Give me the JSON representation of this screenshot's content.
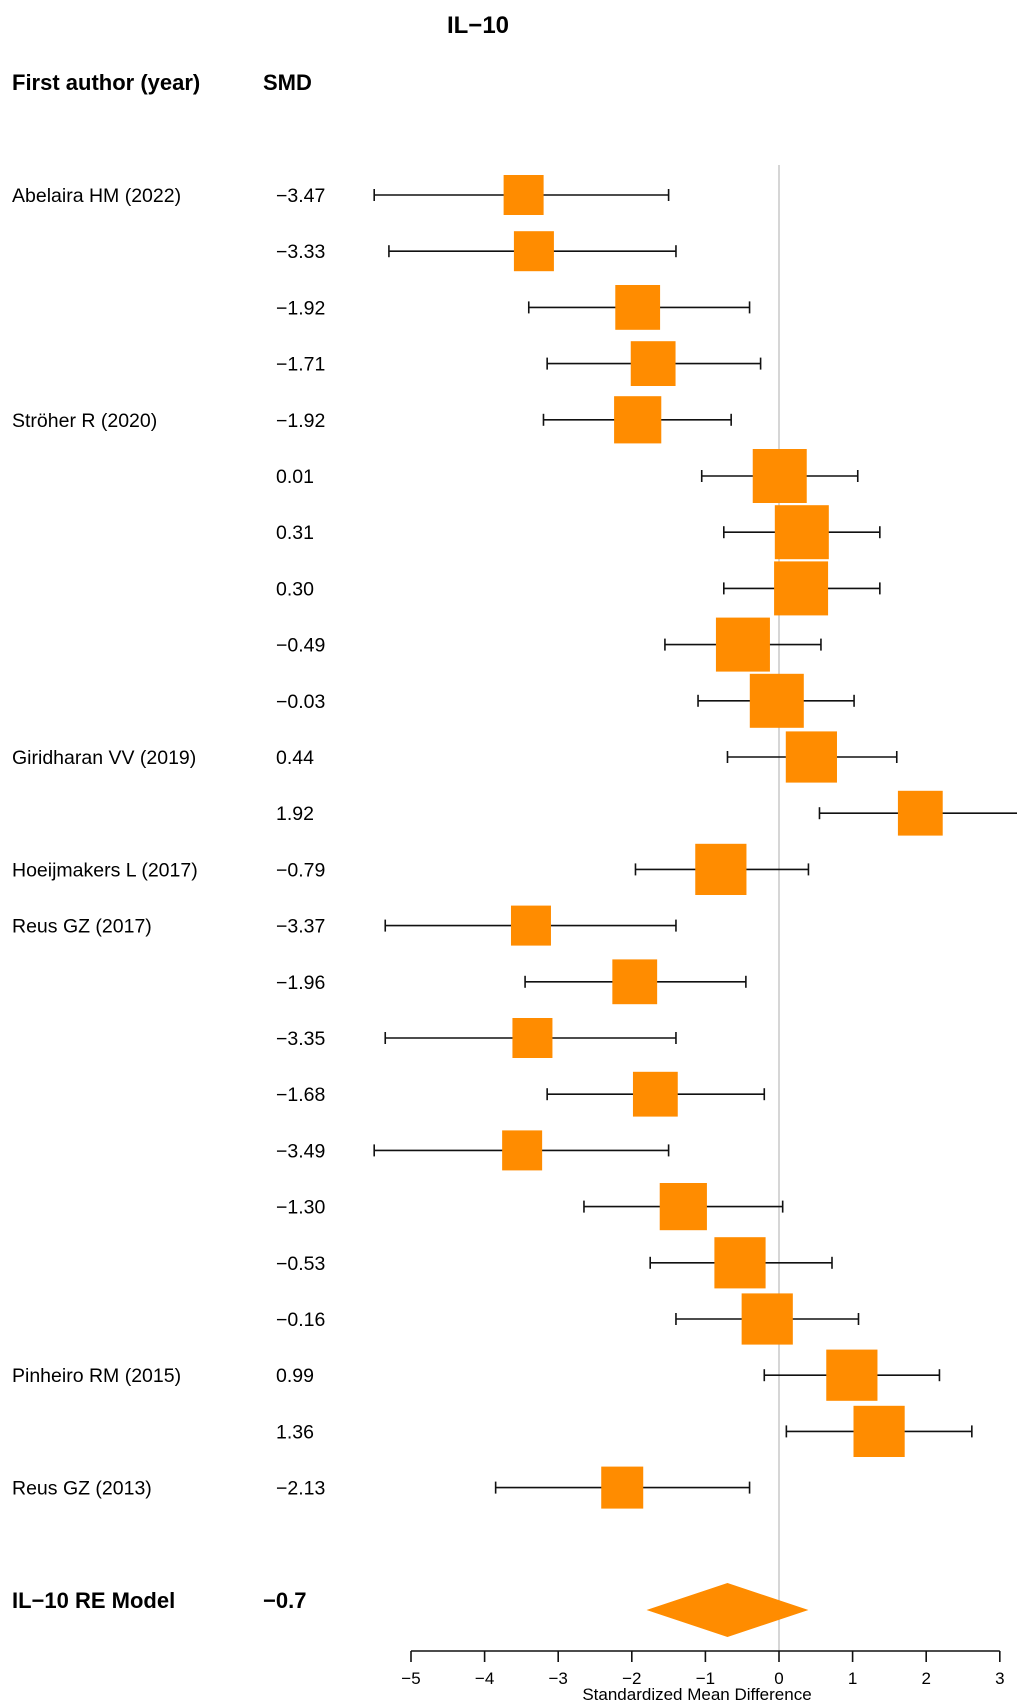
{
  "chart_data": {
    "type": "forest",
    "title": "IL−10",
    "column_headers": {
      "study": "First author (year)",
      "estimate": "SMD"
    },
    "xlabel": "Standardized Mean Difference",
    "xlim": [
      -5,
      3
    ],
    "xticks": [
      -5,
      -4,
      -3,
      -2,
      -1,
      0,
      1,
      2,
      3
    ],
    "xtick_labels": [
      "−5",
      "−4",
      "−3",
      "−2",
      "−1",
      "0",
      "1",
      "2",
      "3"
    ],
    "reference_line": 0,
    "colors": {
      "marker": "#ff8c00",
      "reference_line": "#c8c8c8",
      "ink": "#111111"
    },
    "rows": [
      {
        "study": "Abelaira HM (2022)",
        "smd_label": "−3.47",
        "smd": -3.47,
        "ci_low": -5.5,
        "ci_high": -1.5,
        "weight": 1.0
      },
      {
        "study": "",
        "smd_label": "−3.33",
        "smd": -3.33,
        "ci_low": -5.3,
        "ci_high": -1.4,
        "weight": 1.0
      },
      {
        "study": "",
        "smd_label": "−1.92",
        "smd": -1.92,
        "ci_low": -3.4,
        "ci_high": -0.4,
        "weight": 1.12
      },
      {
        "study": "",
        "smd_label": "−1.71",
        "smd": -1.71,
        "ci_low": -3.15,
        "ci_high": -0.25,
        "weight": 1.12
      },
      {
        "study": "Ströher R (2020)",
        "smd_label": "−1.92",
        "smd": -1.92,
        "ci_low": -3.2,
        "ci_high": -0.65,
        "weight": 1.18
      },
      {
        "study": "",
        "smd_label": "0.01",
        "smd": 0.01,
        "ci_low": -1.05,
        "ci_high": 1.07,
        "weight": 1.35
      },
      {
        "study": "",
        "smd_label": "0.31",
        "smd": 0.31,
        "ci_low": -0.75,
        "ci_high": 1.37,
        "weight": 1.35
      },
      {
        "study": "",
        "smd_label": "0.30",
        "smd": 0.3,
        "ci_low": -0.75,
        "ci_high": 1.37,
        "weight": 1.35
      },
      {
        "study": "",
        "smd_label": "−0.49",
        "smd": -0.49,
        "ci_low": -1.55,
        "ci_high": 0.57,
        "weight": 1.35
      },
      {
        "study": "",
        "smd_label": "−0.03",
        "smd": -0.03,
        "ci_low": -1.1,
        "ci_high": 1.02,
        "weight": 1.35
      },
      {
        "study": "Giridharan VV (2019)",
        "smd_label": "0.44",
        "smd": 0.44,
        "ci_low": -0.7,
        "ci_high": 1.6,
        "weight": 1.28
      },
      {
        "study": "",
        "smd_label": "1.92",
        "smd": 1.92,
        "ci_low": 0.55,
        "ci_high": 3.3,
        "weight": 1.12
      },
      {
        "study": "Hoeijmakers L (2017)",
        "smd_label": "−0.79",
        "smd": -0.79,
        "ci_low": -1.95,
        "ci_high": 0.4,
        "weight": 1.28
      },
      {
        "study": "Reus GZ (2017)",
        "smd_label": "−3.37",
        "smd": -3.37,
        "ci_low": -5.35,
        "ci_high": -1.4,
        "weight": 1.0
      },
      {
        "study": "",
        "smd_label": "−1.96",
        "smd": -1.96,
        "ci_low": -3.45,
        "ci_high": -0.45,
        "weight": 1.12
      },
      {
        "study": "",
        "smd_label": "−3.35",
        "smd": -3.35,
        "ci_low": -5.35,
        "ci_high": -1.4,
        "weight": 1.0
      },
      {
        "study": "",
        "smd_label": "−1.68",
        "smd": -1.68,
        "ci_low": -3.15,
        "ci_high": -0.2,
        "weight": 1.12
      },
      {
        "study": "",
        "smd_label": "−3.49",
        "smd": -3.49,
        "ci_low": -5.5,
        "ci_high": -1.5,
        "weight": 1.0
      },
      {
        "study": "",
        "smd_label": "−1.30",
        "smd": -1.3,
        "ci_low": -2.65,
        "ci_high": 0.05,
        "weight": 1.18
      },
      {
        "study": "",
        "smd_label": "−0.53",
        "smd": -0.53,
        "ci_low": -1.75,
        "ci_high": 0.72,
        "weight": 1.28
      },
      {
        "study": "",
        "smd_label": "−0.16",
        "smd": -0.16,
        "ci_low": -1.4,
        "ci_high": 1.08,
        "weight": 1.28
      },
      {
        "study": "Pinheiro RM (2015)",
        "smd_label": "0.99",
        "smd": 0.99,
        "ci_low": -0.2,
        "ci_high": 2.18,
        "weight": 1.28
      },
      {
        "study": "",
        "smd_label": "1.36",
        "smd": 1.36,
        "ci_low": 0.1,
        "ci_high": 2.62,
        "weight": 1.28
      },
      {
        "study": "Reus GZ (2013)",
        "smd_label": "−2.13",
        "smd": -2.13,
        "ci_low": -3.85,
        "ci_high": -0.4,
        "weight": 1.05
      }
    ],
    "summary": {
      "label": "IL−10 RE Model",
      "smd_label": "−0.7",
      "smd": -0.7,
      "ci_low": -1.8,
      "ci_high": 0.4
    }
  }
}
